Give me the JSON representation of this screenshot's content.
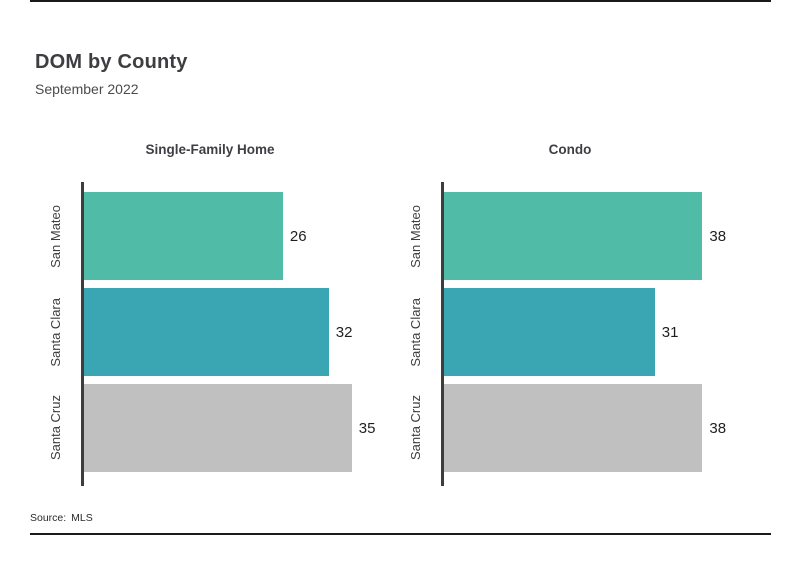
{
  "header": {
    "title": "DOM by County",
    "subtitle": "September 2022"
  },
  "footer": {
    "source": "Source:  MLS"
  },
  "colors": {
    "bar_green_teal": "#50bba6",
    "bar_cyan_teal": "#3aa6b3",
    "bar_gray": "#c0c0c0",
    "axis": "#3d3d3d",
    "rule": "#1a1a1a"
  },
  "chart_data": [
    {
      "type": "bar",
      "orientation": "horizontal",
      "title": "Single-Family Home",
      "categories": [
        "San Mateo",
        "Santa Clara",
        "Santa Cruz"
      ],
      "values": [
        26,
        32,
        35
      ],
      "xlim": [
        0,
        40
      ],
      "grid": false,
      "legend": false,
      "bar_colors": [
        "#50bba6",
        "#3aa6b3",
        "#c0c0c0"
      ]
    },
    {
      "type": "bar",
      "orientation": "horizontal",
      "title": "Condo",
      "categories": [
        "San Mateo",
        "Santa Clara",
        "Santa Cruz"
      ],
      "values": [
        38,
        31,
        38
      ],
      "xlim": [
        0,
        45
      ],
      "grid": false,
      "legend": false,
      "bar_colors": [
        "#50bba6",
        "#3aa6b3",
        "#c0c0c0"
      ]
    }
  ]
}
